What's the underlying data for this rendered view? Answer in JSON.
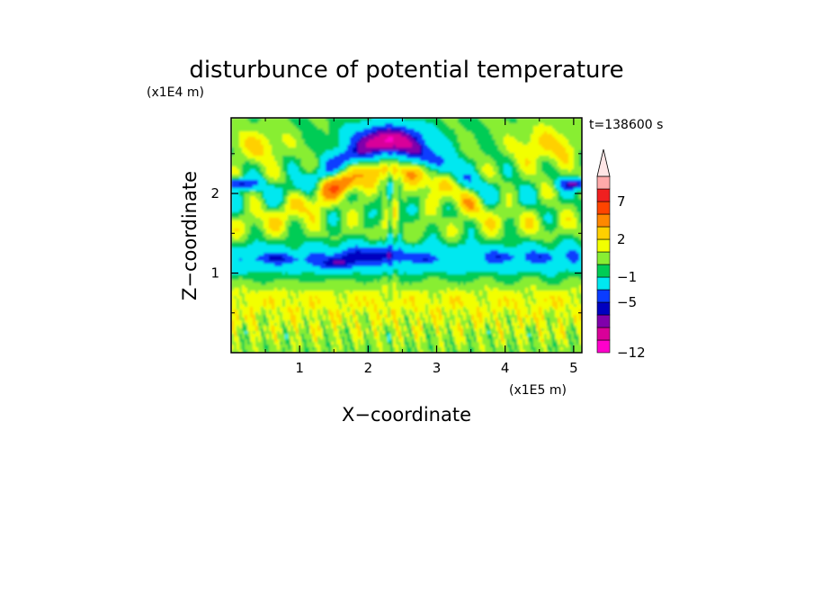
{
  "chart_data": {
    "type": "heatmap",
    "title": "disturbunce of potential temperature",
    "xlabel": "X−coordinate",
    "ylabel": "Z−coordinate",
    "x_scale_label": "(x1E5 m)",
    "y_scale_label": "(x1E4 m)",
    "time_label": "t=138600 s",
    "xlim": [
      0,
      5.12
    ],
    "ylim": [
      0,
      2.95
    ],
    "x_ticks": [
      {
        "value": 1,
        "label": "1"
      },
      {
        "value": 2,
        "label": "2"
      },
      {
        "value": 3,
        "label": "3"
      },
      {
        "value": 4,
        "label": "4"
      },
      {
        "value": 5,
        "label": "5"
      }
    ],
    "y_ticks": [
      {
        "value": 1,
        "label": "1"
      },
      {
        "value": 2,
        "label": "2"
      }
    ],
    "colorbar": {
      "levels": [
        -12,
        -10,
        -8,
        -6,
        -5,
        -3,
        -1,
        0,
        1,
        2,
        3,
        5,
        7,
        9,
        11
      ],
      "colors": [
        "#ff00cc",
        "#d90099",
        "#8000ab",
        "#0000c0",
        "#0a3cff",
        "#00e8f0",
        "#00cc55",
        "#88ee33",
        "#f2ff00",
        "#ffd000",
        "#ff8800",
        "#ff4400",
        "#f02020",
        "#ffaaaa"
      ],
      "over_color": "#ffe6e6",
      "tick_labels": [
        {
          "value": -12,
          "label": "−12"
        },
        {
          "value": -5,
          "label": "−5"
        },
        {
          "value": -1,
          "label": "−1"
        },
        {
          "value": 2,
          "label": "2"
        },
        {
          "value": 7,
          "label": "7"
        }
      ]
    },
    "field_features": [
      {
        "feature": "cold dome core",
        "x": 2.3,
        "z": 2.6,
        "value": -7
      },
      {
        "feature": "cold bands upper",
        "x": 2.3,
        "z": 2.35,
        "value": -3
      },
      {
        "feature": "warm arc",
        "x": 2.3,
        "z": 2.1,
        "value": 3
      },
      {
        "feature": "blue layer left",
        "x": 0.2,
        "z": 2.1,
        "value": -5
      },
      {
        "feature": "blue layer right",
        "x": 5.0,
        "z": 2.1,
        "value": -5
      },
      {
        "feature": "cyan layer",
        "x": 2.5,
        "z": 1.2,
        "value": -2
      },
      {
        "feature": "blue blobs mid",
        "x": 2.0,
        "z": 1.2,
        "value": -5
      },
      {
        "feature": "lower warm band",
        "x": 2.5,
        "z": 0.55,
        "value": 1.5
      }
    ]
  }
}
